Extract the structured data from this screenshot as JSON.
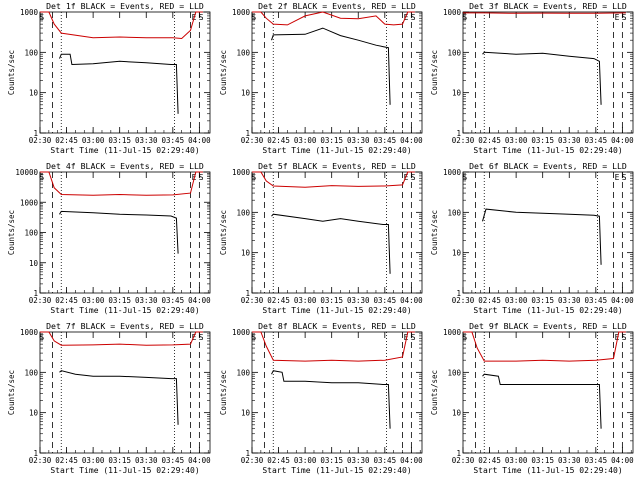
{
  "colors": {
    "events": "#000000",
    "lld": "#cc0000",
    "axis": "#000000",
    "background": "#ffffff"
  },
  "chart_data": [
    {
      "type": "line",
      "title": "Det 1f BLACK = Events, RED = LLD",
      "xlabel": "Start Time (11-Jul-15 02:29:40)",
      "ylabel": "Counts/sec",
      "xlim": [
        "02:30",
        "04:06"
      ],
      "ylim": [
        1,
        1000
      ],
      "yscale": "log",
      "xticks": [
        "02:30",
        "02:45",
        "03:00",
        "03:15",
        "03:30",
        "03:45",
        "04:00"
      ],
      "yticks": [
        "1",
        "10",
        "100",
        "1000"
      ],
      "markers": {
        "S": "02:31",
        "E": "03:57",
        "S2": "04:01"
      },
      "dashed_lines": [
        "02:37",
        "03:55",
        "04:00"
      ],
      "dotted_lines": [
        "02:42",
        "03:46"
      ],
      "series": [
        {
          "name": "Events",
          "color": "black",
          "x": [
            "02:41",
            "02:42",
            "02:47",
            "02:48",
            "03:00",
            "03:15",
            "03:30",
            "03:44",
            "03:47",
            "03:48"
          ],
          "y": [
            70,
            90,
            90,
            50,
            52,
            60,
            55,
            50,
            50,
            3
          ]
        },
        {
          "name": "LLD",
          "color": "red",
          "x": [
            "02:30",
            "02:35",
            "02:38",
            "02:42",
            "03:00",
            "03:15",
            "03:30",
            "03:45",
            "03:50",
            "03:55",
            "03:58",
            "04:02"
          ],
          "y": [
            1000,
            1000,
            500,
            300,
            230,
            240,
            230,
            230,
            220,
            350,
            1000,
            1000
          ]
        }
      ]
    },
    {
      "type": "line",
      "title": "Det 2f BLACK = Events, RED = LLD",
      "xlabel": "Start Time (11-Jul-15 02:29:40)",
      "ylabel": "Counts/sec",
      "xlim": [
        "02:30",
        "04:06"
      ],
      "ylim": [
        1,
        1000
      ],
      "yscale": "log",
      "xticks": [
        "02:30",
        "02:45",
        "03:00",
        "03:15",
        "03:30",
        "03:45",
        "04:00"
      ],
      "yticks": [
        "1",
        "10",
        "100",
        "1000"
      ],
      "markers": {
        "S": "02:31",
        "E": "03:57",
        "S2": "04:01"
      },
      "dashed_lines": [
        "02:37",
        "03:55",
        "04:00"
      ],
      "dotted_lines": [
        "02:42",
        "03:46"
      ],
      "series": [
        {
          "name": "Events",
          "color": "black",
          "x": [
            "02:41",
            "02:42",
            "03:00",
            "03:10",
            "03:20",
            "03:30",
            "03:40",
            "03:47",
            "03:48"
          ],
          "y": [
            200,
            270,
            280,
            400,
            260,
            200,
            150,
            130,
            5
          ]
        },
        {
          "name": "LLD",
          "color": "red",
          "x": [
            "02:30",
            "02:35",
            "02:38",
            "02:42",
            "02:50",
            "03:00",
            "03:10",
            "03:20",
            "03:30",
            "03:40",
            "03:45",
            "03:50",
            "03:55",
            "03:58",
            "04:02"
          ],
          "y": [
            1000,
            1000,
            700,
            500,
            480,
            800,
            1000,
            700,
            680,
            800,
            500,
            480,
            500,
            1000,
            1000
          ]
        }
      ]
    },
    {
      "type": "line",
      "title": "Det 3f BLACK = Events, RED = LLD",
      "xlabel": "Start Time (11-Jul-15 02:29:40)",
      "ylabel": "Counts/sec",
      "xlim": [
        "02:30",
        "04:06"
      ],
      "ylim": [
        1,
        1000
      ],
      "yscale": "log",
      "xticks": [
        "02:30",
        "02:45",
        "03:00",
        "03:15",
        "03:30",
        "03:45",
        "04:00"
      ],
      "yticks": [
        "1",
        "10",
        "100",
        "1000"
      ],
      "markers": {
        "S": "02:31",
        "E": "03:57",
        "S2": "04:01"
      },
      "dashed_lines": [
        "02:37",
        "03:55",
        "04:00"
      ],
      "dotted_lines": [
        "02:42",
        "03:46"
      ],
      "series": [
        {
          "name": "Events",
          "color": "black",
          "x": [
            "02:41",
            "02:42",
            "03:00",
            "03:15",
            "03:30",
            "03:44",
            "03:47",
            "03:48"
          ],
          "y": [
            90,
            100,
            90,
            95,
            80,
            70,
            60,
            5
          ]
        },
        {
          "name": "LLD",
          "color": "red",
          "x": [
            "02:30",
            "02:42",
            "03:00",
            "03:15",
            "03:30",
            "03:45",
            "04:02"
          ],
          "y": [
            950,
            950,
            930,
            940,
            930,
            930,
            950
          ]
        }
      ]
    },
    {
      "type": "line",
      "title": "Det 4f BLACK = Events, RED = LLD",
      "xlabel": "Start Time (11-Jul-15 02:29:40)",
      "ylabel": "Counts/sec",
      "xlim": [
        "02:30",
        "04:06"
      ],
      "ylim": [
        1,
        10000
      ],
      "yscale": "log",
      "xticks": [
        "02:30",
        "02:45",
        "03:00",
        "03:15",
        "03:30",
        "03:45",
        "04:00"
      ],
      "yticks": [
        "1",
        "10",
        "100",
        "1000",
        "10000"
      ],
      "markers": {
        "S": "02:31",
        "E": "03:57",
        "S2": "04:01"
      },
      "dashed_lines": [
        "02:37",
        "03:55",
        "04:00"
      ],
      "dotted_lines": [
        "02:42",
        "03:46"
      ],
      "series": [
        {
          "name": "Events",
          "color": "black",
          "x": [
            "02:41",
            "02:42",
            "03:00",
            "03:15",
            "03:30",
            "03:44",
            "03:47",
            "03:48"
          ],
          "y": [
            400,
            500,
            450,
            400,
            380,
            350,
            300,
            20
          ]
        },
        {
          "name": "LLD",
          "color": "red",
          "x": [
            "02:30",
            "02:35",
            "02:38",
            "02:42",
            "03:00",
            "03:15",
            "03:30",
            "03:45",
            "03:55",
            "03:58",
            "04:02"
          ],
          "y": [
            10000,
            10000,
            3000,
            1800,
            1700,
            1800,
            1700,
            1750,
            2000,
            10000,
            10000
          ]
        }
      ]
    },
    {
      "type": "line",
      "title": "Det 5f BLACK = Events, RED = LLD",
      "xlabel": "Start Time (11-Jul-15 02:29:40)",
      "ylabel": "Counts/sec",
      "xlim": [
        "02:30",
        "04:06"
      ],
      "ylim": [
        1,
        1000
      ],
      "yscale": "log",
      "xticks": [
        "02:30",
        "02:45",
        "03:00",
        "03:15",
        "03:30",
        "03:45",
        "04:00"
      ],
      "yticks": [
        "1",
        "10",
        "100",
        "1000"
      ],
      "markers": {
        "S": "02:31",
        "E": "03:57",
        "S2": "04:01"
      },
      "dashed_lines": [
        "02:37",
        "03:55",
        "04:00"
      ],
      "dotted_lines": [
        "02:42",
        "03:46"
      ],
      "series": [
        {
          "name": "Events",
          "color": "black",
          "x": [
            "02:41",
            "02:42",
            "03:00",
            "03:10",
            "03:20",
            "03:30",
            "03:44",
            "03:47",
            "03:48"
          ],
          "y": [
            80,
            90,
            70,
            60,
            70,
            60,
            50,
            50,
            3
          ]
        },
        {
          "name": "LLD",
          "color": "red",
          "x": [
            "02:30",
            "02:35",
            "02:38",
            "02:42",
            "03:00",
            "03:15",
            "03:30",
            "03:45",
            "03:55",
            "03:58",
            "04:02"
          ],
          "y": [
            1000,
            1000,
            600,
            450,
            420,
            460,
            440,
            450,
            480,
            1000,
            1000
          ]
        }
      ]
    },
    {
      "type": "line",
      "title": "Det 6f BLACK = Events, RED = LLD",
      "xlabel": "Start Time (11-Jul-15 02:29:40)",
      "ylabel": "Counts/sec",
      "xlim": [
        "02:30",
        "04:06"
      ],
      "ylim": [
        1,
        1000
      ],
      "yscale": "log",
      "xticks": [
        "02:30",
        "02:45",
        "03:00",
        "03:15",
        "03:30",
        "03:45",
        "04:00"
      ],
      "yticks": [
        "1",
        "10",
        "100",
        "1000"
      ],
      "markers": {
        "S": "02:31",
        "E": "03:57",
        "S2": "04:01"
      },
      "dashed_lines": [
        "02:37",
        "03:55",
        "04:00"
      ],
      "dotted_lines": [
        "02:42",
        "03:46"
      ],
      "series": [
        {
          "name": "Events",
          "color": "black",
          "x": [
            "02:41",
            "02:43",
            "03:00",
            "03:15",
            "03:30",
            "03:44",
            "03:47",
            "03:48"
          ],
          "y": [
            60,
            120,
            100,
            95,
            90,
            85,
            80,
            5
          ]
        }
      ]
    },
    {
      "type": "line",
      "title": "Det 7f BLACK = Events, RED = LLD",
      "xlabel": "Start Time (11-Jul-15 02:29:40)",
      "ylabel": "Counts/sec",
      "xlim": [
        "02:30",
        "04:06"
      ],
      "ylim": [
        1,
        1000
      ],
      "yscale": "log",
      "xticks": [
        "02:30",
        "02:45",
        "03:00",
        "03:15",
        "03:30",
        "03:45",
        "04:00"
      ],
      "yticks": [
        "1",
        "10",
        "100",
        "1000"
      ],
      "markers": {
        "S": "02:31",
        "E": "03:57",
        "S2": "04:01"
      },
      "dashed_lines": [
        "02:37",
        "03:55",
        "04:00"
      ],
      "dotted_lines": [
        "02:42",
        "03:46"
      ],
      "series": [
        {
          "name": "Events",
          "color": "black",
          "x": [
            "02:41",
            "02:42",
            "02:50",
            "03:00",
            "03:15",
            "03:30",
            "03:44",
            "03:47",
            "03:48"
          ],
          "y": [
            100,
            110,
            90,
            80,
            80,
            75,
            70,
            70,
            5
          ]
        },
        {
          "name": "LLD",
          "color": "red",
          "x": [
            "02:30",
            "02:35",
            "02:38",
            "02:42",
            "03:00",
            "03:15",
            "03:30",
            "03:45",
            "03:55",
            "03:58",
            "04:02"
          ],
          "y": [
            1000,
            1000,
            600,
            470,
            480,
            500,
            470,
            480,
            500,
            1000,
            1000
          ]
        }
      ]
    },
    {
      "type": "line",
      "title": "Det 8f BLACK = Events, RED = LLD",
      "xlabel": "Start Time (11-Jul-15 02:29:40)",
      "ylabel": "Counts/sec",
      "xlim": [
        "02:30",
        "04:06"
      ],
      "ylim": [
        1,
        1000
      ],
      "yscale": "log",
      "xticks": [
        "02:30",
        "02:45",
        "03:00",
        "03:15",
        "03:30",
        "03:45",
        "04:00"
      ],
      "yticks": [
        "1",
        "10",
        "100",
        "1000"
      ],
      "markers": {
        "S": "02:31",
        "E": "03:57",
        "S2": "04:01"
      },
      "dashed_lines": [
        "02:37",
        "03:55",
        "04:00"
      ],
      "dotted_lines": [
        "02:42",
        "03:46"
      ],
      "series": [
        {
          "name": "Events",
          "color": "black",
          "x": [
            "02:41",
            "02:42",
            "02:47",
            "02:48",
            "03:00",
            "03:15",
            "03:30",
            "03:44",
            "03:47",
            "03:48"
          ],
          "y": [
            90,
            110,
            100,
            60,
            60,
            55,
            55,
            50,
            50,
            4
          ]
        },
        {
          "name": "LLD",
          "color": "red",
          "x": [
            "02:30",
            "02:35",
            "02:38",
            "02:42",
            "03:00",
            "03:15",
            "03:30",
            "03:45",
            "03:55",
            "03:58",
            "04:02"
          ],
          "y": [
            1000,
            1000,
            450,
            200,
            190,
            200,
            190,
            200,
            240,
            1000,
            1000
          ]
        }
      ]
    },
    {
      "type": "line",
      "title": "Det 9f BLACK = Events, RED = LLD",
      "xlabel": "Start Time (11-Jul-15 02:29:40)",
      "ylabel": "Counts/sec",
      "xlim": [
        "02:30",
        "04:06"
      ],
      "ylim": [
        1,
        1000
      ],
      "yscale": "log",
      "xticks": [
        "02:30",
        "02:45",
        "03:00",
        "03:15",
        "03:30",
        "03:45",
        "04:00"
      ],
      "yticks": [
        "1",
        "10",
        "100",
        "1000"
      ],
      "markers": {
        "S": "02:31",
        "E": "03:57",
        "S2": "04:01"
      },
      "dashed_lines": [
        "02:37",
        "03:55",
        "04:00"
      ],
      "dotted_lines": [
        "02:42",
        "03:46"
      ],
      "series": [
        {
          "name": "Events",
          "color": "black",
          "x": [
            "02:41",
            "02:42",
            "02:50",
            "02:51",
            "03:00",
            "03:15",
            "03:30",
            "03:44",
            "03:47",
            "03:48"
          ],
          "y": [
            80,
            90,
            80,
            50,
            50,
            50,
            50,
            50,
            50,
            4
          ]
        },
        {
          "name": "LLD",
          "color": "red",
          "x": [
            "02:30",
            "02:35",
            "02:38",
            "02:42",
            "03:00",
            "03:15",
            "03:30",
            "03:45",
            "03:55",
            "03:58",
            "04:02"
          ],
          "y": [
            1000,
            1000,
            400,
            190,
            190,
            200,
            190,
            200,
            220,
            1000,
            1000
          ]
        }
      ]
    }
  ]
}
